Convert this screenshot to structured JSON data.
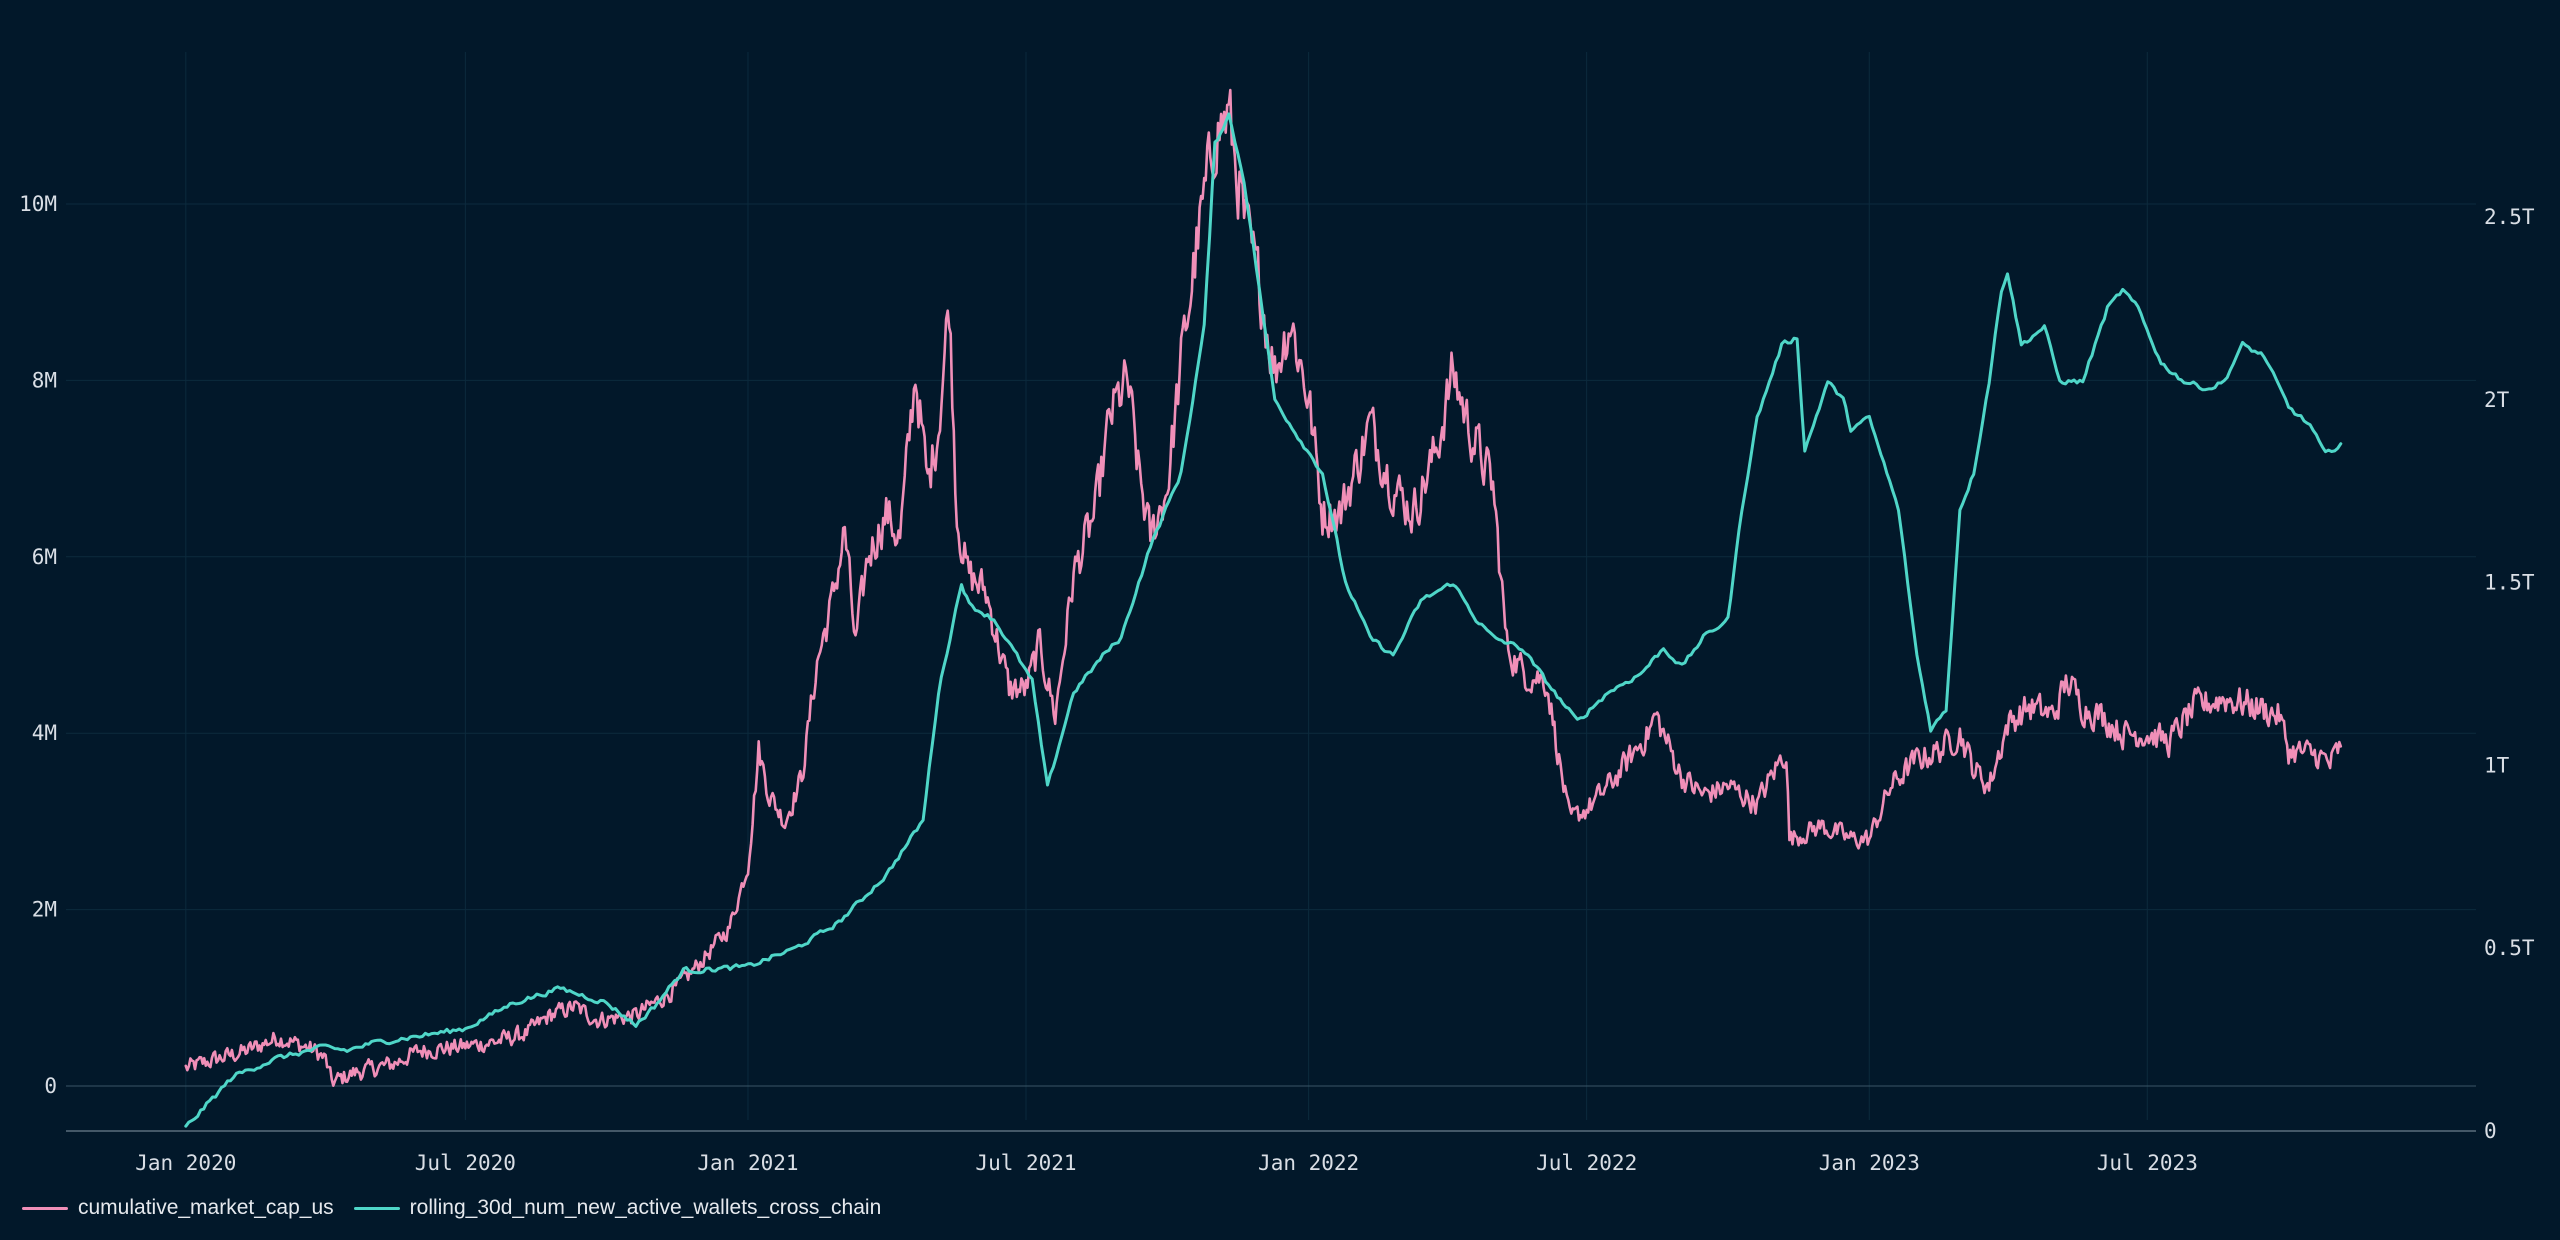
{
  "colors": {
    "background": "#02182a",
    "grid": "#0c2a3d",
    "axis": "#5a6e7c",
    "text": "#d9dee5",
    "series_pink": "#f08fb8",
    "series_teal": "#4fd6c8"
  },
  "chart_data": {
    "type": "line",
    "title": "",
    "grid": true,
    "legend_position": "bottom-left",
    "x_axis": {
      "type": "date",
      "range": [
        "2019-10-15",
        "2024-01-31"
      ],
      "ticks": [
        {
          "date": "2020-01-01",
          "label": "Jan 2020"
        },
        {
          "date": "2020-07-01",
          "label": "Jul 2020"
        },
        {
          "date": "2021-01-01",
          "label": "Jan 2021"
        },
        {
          "date": "2021-07-01",
          "label": "Jul 2021"
        },
        {
          "date": "2022-01-01",
          "label": "Jan 2022"
        },
        {
          "date": "2022-07-01",
          "label": "Jul 2022"
        },
        {
          "date": "2023-01-01",
          "label": "Jan 2023"
        },
        {
          "date": "2023-07-01",
          "label": "Jul 2023"
        }
      ]
    },
    "y_left": {
      "range": [
        0,
        11500000
      ],
      "ticks": [
        {
          "value": 0,
          "label": "0"
        },
        {
          "value": 2000000,
          "label": "2M"
        },
        {
          "value": 4000000,
          "label": "4M"
        },
        {
          "value": 6000000,
          "label": "6M"
        },
        {
          "value": 8000000,
          "label": "8M"
        },
        {
          "value": 10000000,
          "label": "10M"
        }
      ]
    },
    "y_right": {
      "range": [
        -120000000000,
        2930000000000
      ],
      "ticks": [
        {
          "value": 0,
          "label": "0"
        },
        {
          "value": 500000000000,
          "label": "0.5T"
        },
        {
          "value": 1000000000000,
          "label": "1T"
        },
        {
          "value": 1500000000000,
          "label": "1.5T"
        },
        {
          "value": 2000000000000,
          "label": "2T"
        },
        {
          "value": 2500000000000,
          "label": "2.5T"
        }
      ]
    },
    "series": [
      {
        "name": "cumulative_market_cap_us",
        "color": "#f08fb8",
        "axis": "left",
        "jitter": 0.035,
        "points": [
          [
            "2020-01-01",
            200000
          ],
          [
            "2020-01-20",
            300000
          ],
          [
            "2020-02-10",
            400000
          ],
          [
            "2020-03-01",
            550000
          ],
          [
            "2020-03-10",
            500000
          ],
          [
            "2020-03-25",
            400000
          ],
          [
            "2020-04-01",
            300000
          ],
          [
            "2020-04-05",
            40000
          ],
          [
            "2020-04-20",
            150000
          ],
          [
            "2020-05-15",
            250000
          ],
          [
            "2020-06-01",
            400000
          ],
          [
            "2020-07-01",
            450000
          ],
          [
            "2020-07-20",
            500000
          ],
          [
            "2020-08-10",
            600000
          ],
          [
            "2020-08-25",
            800000
          ],
          [
            "2020-09-10",
            900000
          ],
          [
            "2020-09-25",
            750000
          ],
          [
            "2020-10-20",
            800000
          ],
          [
            "2020-11-15",
            1100000
          ],
          [
            "2020-12-01",
            1400000
          ],
          [
            "2020-12-20",
            1800000
          ],
          [
            "2021-01-01",
            2500000
          ],
          [
            "2021-01-08",
            3800000
          ],
          [
            "2021-01-15",
            3300000
          ],
          [
            "2021-01-25",
            3000000
          ],
          [
            "2021-02-05",
            3500000
          ],
          [
            "2021-02-15",
            4800000
          ],
          [
            "2021-02-25",
            5500000
          ],
          [
            "2021-03-05",
            6300000
          ],
          [
            "2021-03-12",
            5000000
          ],
          [
            "2021-03-20",
            6000000
          ],
          [
            "2021-04-01",
            6500000
          ],
          [
            "2021-04-10",
            6200000
          ],
          [
            "2021-04-20",
            8100000
          ],
          [
            "2021-04-28",
            6800000
          ],
          [
            "2021-05-05",
            7500000
          ],
          [
            "2021-05-12",
            8900000
          ],
          [
            "2021-05-17",
            6500000
          ],
          [
            "2021-05-24",
            5800000
          ],
          [
            "2021-06-05",
            5600000
          ],
          [
            "2021-06-20",
            4500000
          ],
          [
            "2021-07-01",
            4500000
          ],
          [
            "2021-07-10",
            5000000
          ],
          [
            "2021-07-20",
            4200000
          ],
          [
            "2021-08-01",
            5800000
          ],
          [
            "2021-08-15",
            6500000
          ],
          [
            "2021-08-25",
            7600000
          ],
          [
            "2021-09-05",
            8000000
          ],
          [
            "2021-09-12",
            7000000
          ],
          [
            "2021-09-20",
            6200000
          ],
          [
            "2021-10-01",
            6800000
          ],
          [
            "2021-10-10",
            8200000
          ],
          [
            "2021-10-20",
            9500000
          ],
          [
            "2021-11-01",
            10800000
          ],
          [
            "2021-11-10",
            11000000
          ],
          [
            "2021-11-20",
            9800000
          ],
          [
            "2021-12-01",
            9000000
          ],
          [
            "2021-12-10",
            8100000
          ],
          [
            "2021-12-20",
            8700000
          ],
          [
            "2022-01-01",
            7800000
          ],
          [
            "2022-01-10",
            6500000
          ],
          [
            "2022-01-22",
            6500000
          ],
          [
            "2022-02-10",
            7500000
          ],
          [
            "2022-02-25",
            6800000
          ],
          [
            "2022-03-10",
            6500000
          ],
          [
            "2022-03-25",
            7200000
          ],
          [
            "2022-04-05",
            8100000
          ],
          [
            "2022-04-15",
            7500000
          ],
          [
            "2022-05-01",
            6800000
          ],
          [
            "2022-05-10",
            5000000
          ],
          [
            "2022-05-20",
            4700000
          ],
          [
            "2022-06-05",
            4600000
          ],
          [
            "2022-06-14",
            3600000
          ],
          [
            "2022-06-20",
            3000000
          ],
          [
            "2022-07-05",
            3200000
          ],
          [
            "2022-07-20",
            3500000
          ],
          [
            "2022-08-10",
            4000000
          ],
          [
            "2022-08-15",
            4200000
          ],
          [
            "2022-09-01",
            3500000
          ],
          [
            "2022-09-15",
            3300000
          ],
          [
            "2022-10-01",
            3400000
          ],
          [
            "2022-10-20",
            3200000
          ],
          [
            "2022-11-01",
            3600000
          ],
          [
            "2022-11-08",
            3800000
          ],
          [
            "2022-11-10",
            2800000
          ],
          [
            "2022-12-01",
            2950000
          ],
          [
            "2022-12-20",
            2800000
          ],
          [
            "2023-01-01",
            2800000
          ],
          [
            "2023-01-15",
            3400000
          ],
          [
            "2023-02-01",
            3700000
          ],
          [
            "2023-02-15",
            3800000
          ],
          [
            "2023-03-01",
            4000000
          ],
          [
            "2023-03-10",
            3600000
          ],
          [
            "2023-03-20",
            3400000
          ],
          [
            "2023-04-01",
            4100000
          ],
          [
            "2023-04-15",
            4300000
          ],
          [
            "2023-05-01",
            4200000
          ],
          [
            "2023-05-10",
            4600000
          ],
          [
            "2023-05-20",
            4300000
          ],
          [
            "2023-06-01",
            4200000
          ],
          [
            "2023-06-15",
            4000000
          ],
          [
            "2023-07-01",
            4000000
          ],
          [
            "2023-07-15",
            3900000
          ],
          [
            "2023-08-01",
            4300000
          ],
          [
            "2023-08-20",
            4400000
          ],
          [
            "2023-09-10",
            4300000
          ],
          [
            "2023-09-25",
            4200000
          ],
          [
            "2023-10-01",
            3800000
          ],
          [
            "2023-10-20",
            3750000
          ],
          [
            "2023-10-28",
            3650000
          ],
          [
            "2023-11-04",
            3850000
          ]
        ]
      },
      {
        "name": "rolling_30d_num_new_active_wallets_cross_chain",
        "color": "#4fd6c8",
        "axis": "right",
        "jitter": 0.004,
        "points": [
          [
            "2020-01-01",
            10000000000
          ],
          [
            "2020-02-01",
            150000000000
          ],
          [
            "2020-03-01",
            200000000000
          ],
          [
            "2020-04-01",
            230000000000
          ],
          [
            "2020-04-15",
            220000000000
          ],
          [
            "2020-05-01",
            240000000000
          ],
          [
            "2020-06-01",
            260000000000
          ],
          [
            "2020-07-01",
            280000000000
          ],
          [
            "2020-08-01",
            350000000000
          ],
          [
            "2020-09-01",
            390000000000
          ],
          [
            "2020-10-01",
            350000000000
          ],
          [
            "2020-10-20",
            290000000000
          ],
          [
            "2020-11-01",
            340000000000
          ],
          [
            "2020-11-20",
            440000000000
          ],
          [
            "2020-12-01",
            440000000000
          ],
          [
            "2021-01-01",
            450000000000
          ],
          [
            "2021-02-01",
            500000000000
          ],
          [
            "2021-03-01",
            570000000000
          ],
          [
            "2021-04-01",
            700000000000
          ],
          [
            "2021-04-25",
            850000000000
          ],
          [
            "2021-05-05",
            1200000000000
          ],
          [
            "2021-05-20",
            1500000000000
          ],
          [
            "2021-05-25",
            1440000000000
          ],
          [
            "2021-06-10",
            1400000000000
          ],
          [
            "2021-06-25",
            1300000000000
          ],
          [
            "2021-07-05",
            1230000000000
          ],
          [
            "2021-07-15",
            940000000000
          ],
          [
            "2021-08-01",
            1200000000000
          ],
          [
            "2021-08-20",
            1300000000000
          ],
          [
            "2021-09-01",
            1350000000000
          ],
          [
            "2021-09-20",
            1600000000000
          ],
          [
            "2021-10-10",
            1800000000000
          ],
          [
            "2021-10-25",
            2200000000000
          ],
          [
            "2021-11-01",
            2700000000000
          ],
          [
            "2021-11-10",
            2780000000000
          ],
          [
            "2021-11-20",
            2600000000000
          ],
          [
            "2021-12-10",
            2000000000000
          ],
          [
            "2021-12-25",
            1900000000000
          ],
          [
            "2022-01-10",
            1800000000000
          ],
          [
            "2022-01-25",
            1500000000000
          ],
          [
            "2022-02-10",
            1350000000000
          ],
          [
            "2022-02-25",
            1300000000000
          ],
          [
            "2022-03-15",
            1450000000000
          ],
          [
            "2022-04-05",
            1500000000000
          ],
          [
            "2022-04-20",
            1400000000000
          ],
          [
            "2022-05-01",
            1350000000000
          ],
          [
            "2022-05-20",
            1320000000000
          ],
          [
            "2022-06-10",
            1200000000000
          ],
          [
            "2022-06-25",
            1120000000000
          ],
          [
            "2022-07-15",
            1200000000000
          ],
          [
            "2022-08-05",
            1250000000000
          ],
          [
            "2022-08-20",
            1320000000000
          ],
          [
            "2022-09-01",
            1270000000000
          ],
          [
            "2022-09-15",
            1350000000000
          ],
          [
            "2022-10-01",
            1400000000000
          ],
          [
            "2022-10-10",
            1700000000000
          ],
          [
            "2022-10-20",
            1950000000000
          ],
          [
            "2022-11-05",
            2150000000000
          ],
          [
            "2022-11-15",
            2170000000000
          ],
          [
            "2022-11-20",
            1860000000000
          ],
          [
            "2022-12-05",
            2050000000000
          ],
          [
            "2022-12-15",
            2000000000000
          ],
          [
            "2022-12-20",
            1920000000000
          ],
          [
            "2023-01-01",
            1950000000000
          ],
          [
            "2023-01-20",
            1700000000000
          ],
          [
            "2023-02-01",
            1300000000000
          ],
          [
            "2023-02-10",
            1100000000000
          ],
          [
            "2023-02-20",
            1150000000000
          ],
          [
            "2023-03-01",
            1700000000000
          ],
          [
            "2023-03-10",
            1800000000000
          ],
          [
            "2023-03-20",
            2050000000000
          ],
          [
            "2023-03-28",
            2300000000000
          ],
          [
            "2023-04-01",
            2350000000000
          ],
          [
            "2023-04-10",
            2150000000000
          ],
          [
            "2023-04-25",
            2200000000000
          ],
          [
            "2023-05-05",
            2050000000000
          ],
          [
            "2023-05-20",
            2050000000000
          ],
          [
            "2023-06-05",
            2250000000000
          ],
          [
            "2023-06-15",
            2300000000000
          ],
          [
            "2023-06-25",
            2250000000000
          ],
          [
            "2023-07-10",
            2100000000000
          ],
          [
            "2023-07-25",
            2050000000000
          ],
          [
            "2023-08-10",
            2030000000000
          ],
          [
            "2023-08-20",
            2050000000000
          ],
          [
            "2023-09-01",
            2150000000000
          ],
          [
            "2023-09-15",
            2120000000000
          ],
          [
            "2023-10-01",
            1980000000000
          ],
          [
            "2023-10-15",
            1930000000000
          ],
          [
            "2023-10-25",
            1850000000000
          ],
          [
            "2023-11-04",
            1880000000000
          ]
        ]
      }
    ]
  }
}
